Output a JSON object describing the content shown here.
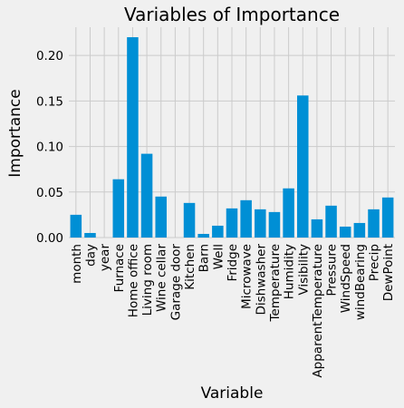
{
  "chart_data": {
    "type": "bar",
    "title": "Variables of Importance",
    "xlabel": "Variable",
    "ylabel": "Importance",
    "categories": [
      "month",
      "day",
      "year",
      "Furnace",
      "Home office",
      "Living room",
      "Wine cellar",
      "Garage door",
      "Kitchen",
      "Barn",
      "Well",
      "Fridge",
      "Microwave",
      "Dishwasher",
      "Temperature",
      "Humidity",
      "Visibility",
      "ApparentTemperature",
      "Pressure",
      "WindSpeed",
      "windBearing",
      "Precip",
      "DewPoint"
    ],
    "values": [
      0.025,
      0.005,
      0.0,
      0.064,
      0.22,
      0.092,
      0.045,
      0.0,
      0.038,
      0.004,
      0.013,
      0.032,
      0.041,
      0.031,
      0.028,
      0.054,
      0.156,
      0.02,
      0.035,
      0.012,
      0.016,
      0.031,
      0.044
    ],
    "yticks": [
      0.0,
      0.05,
      0.1,
      0.15,
      0.2
    ],
    "ytick_labels": [
      "0.00",
      "0.05",
      "0.10",
      "0.15",
      "0.20"
    ],
    "ylim": [
      0,
      0.231
    ],
    "grid": true,
    "colors": {
      "bar": "#008fd5",
      "background": "#f0f0f0",
      "grid": "#cbcbcb"
    }
  }
}
